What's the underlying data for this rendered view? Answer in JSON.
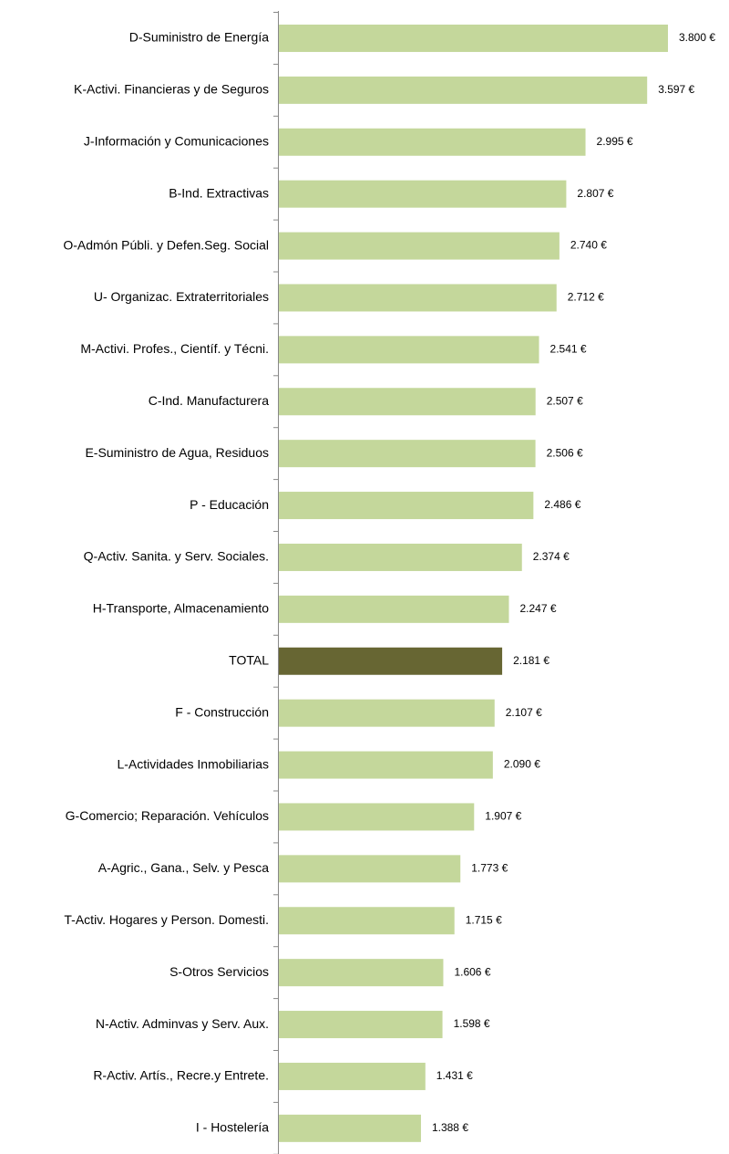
{
  "chart_data": {
    "type": "hbar",
    "categories": [
      "D-Suministro de Energía",
      "K-Activi. Financieras y de Seguros",
      "J-Información y Comunicaciones",
      "B-Ind. Extractivas",
      "O-Admón Públi. y Defen.Seg. Social",
      "U- Organizac. Extraterritoriales",
      "M-Activi. Profes., Científ. y Técni.",
      "C-Ind. Manufacturera",
      "E-Suministro de Agua, Residuos",
      "P - Educación",
      "Q-Activ. Sanita. y Serv. Sociales.",
      "H-Transporte, Almacenamiento",
      "TOTAL",
      "F - Construcción",
      "L-Actividades Inmobiliarias",
      "G-Comercio; Reparación. Vehículos",
      "A-Agric., Gana., Selv. y Pesca",
      "T-Activ. Hogares y Person. Domesti.",
      "S-Otros Servicios",
      "N-Activ. Adminvas y Serv. Aux.",
      "R-Activ. Artís., Recre.y Entrete.",
      "I - Hostelería"
    ],
    "values": [
      3800,
      3597,
      2995,
      2807,
      2740,
      2712,
      2541,
      2507,
      2506,
      2486,
      2374,
      2247,
      2181,
      2107,
      2090,
      1907,
      1773,
      1715,
      1606,
      1598,
      1431,
      1388
    ],
    "value_labels": [
      "3.800 €",
      "3.597 €",
      "2.995 €",
      "2.807 €",
      "2.740 €",
      "2.712 €",
      "2.541 €",
      "2.507 €",
      "2.506 €",
      "2.486 €",
      "2.374 €",
      "2.247 €",
      "2.181 €",
      "2.107 €",
      "2.090 €",
      "1.907 €",
      "1.773 €",
      "1.715 €",
      "1.606 €",
      "1.598 €",
      "1.431 €",
      "1.388 €"
    ],
    "colors": [
      "#c4d79b",
      "#c4d79b",
      "#c4d79b",
      "#c4d79b",
      "#c4d79b",
      "#c4d79b",
      "#c4d79b",
      "#c4d79b",
      "#c4d79b",
      "#c4d79b",
      "#c4d79b",
      "#c4d79b",
      "#676633",
      "#c4d79b",
      "#c4d79b",
      "#c4d79b",
      "#c4d79b",
      "#c4d79b",
      "#c4d79b",
      "#c4d79b",
      "#c4d79b",
      "#c4d79b"
    ]
  }
}
